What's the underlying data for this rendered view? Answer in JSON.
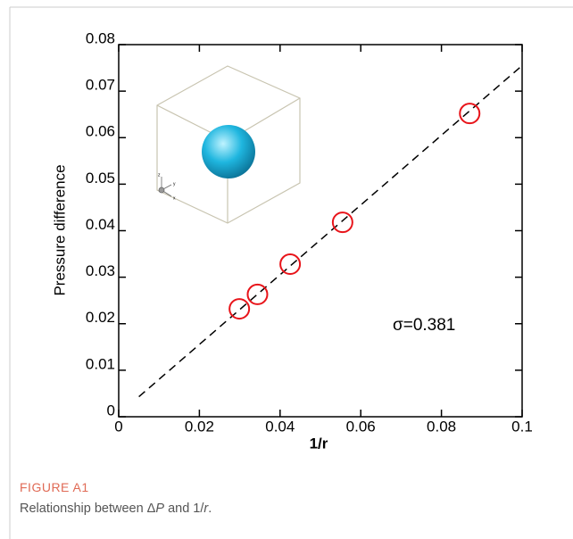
{
  "chart_data": {
    "type": "scatter",
    "x_label": "1/r",
    "y_label": "Pressure difference",
    "annotation": "σ=0.381",
    "series": [
      {
        "color": "#e8141a",
        "x": [
          0.0299,
          0.0344,
          0.0425,
          0.0555,
          0.087
        ],
        "values": [
          0.0232,
          0.0263,
          0.0328,
          0.0418,
          0.0652
        ]
      }
    ],
    "fit_line": {
      "color": "#000000",
      "x": [
        0.005,
        0.1
      ],
      "values": [
        0.0043,
        0.0755
      ]
    },
    "xlim": [
      0,
      0.1
    ],
    "xticks": [
      0,
      0.02,
      0.04,
      0.06,
      0.08,
      {
        "value": 0.1,
        "label": "0.1"
      }
    ],
    "ylim": [
      0,
      0.08
    ],
    "yticks": [
      0,
      0.01,
      0.02,
      0.03,
      0.04,
      0.05,
      0.06,
      0.07,
      0.08
    ],
    "inset_axis_labels": [
      "z",
      "y",
      "x"
    ]
  },
  "caption": {
    "label": "FIGURE A1",
    "text": [
      "Relationship between Δ",
      "P",
      " and 1/",
      "r",
      "."
    ]
  }
}
